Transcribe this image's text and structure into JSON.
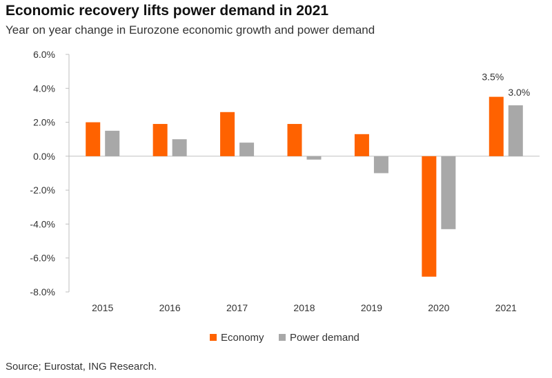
{
  "chart_data": {
    "type": "bar",
    "title": "Economic recovery lifts power demand in 2021",
    "subtitle": "Year on year change in Eurozone economic growth and power demand",
    "categories": [
      "2015",
      "2016",
      "2017",
      "2018",
      "2019",
      "2020",
      "2021"
    ],
    "series": [
      {
        "name": "Economy",
        "color": "#ff6200",
        "values": [
          2.0,
          1.9,
          2.6,
          1.9,
          1.3,
          -7.1,
          3.5
        ]
      },
      {
        "name": "Power demand",
        "color": "#a8a8a8",
        "values": [
          1.5,
          1.0,
          0.8,
          -0.2,
          -1.0,
          -4.3,
          3.0
        ]
      }
    ],
    "ylim": [
      -8.0,
      6.0
    ],
    "yticks": [
      6.0,
      4.0,
      2.0,
      0.0,
      -2.0,
      -4.0,
      -6.0,
      -8.0
    ],
    "ytick_labels": [
      "6.0%",
      "4.0%",
      "2.0%",
      "0.0%",
      "-2.0%",
      "-4.0%",
      "-6.0%",
      "-8.0%"
    ],
    "data_labels": [
      {
        "series": 0,
        "category": 6,
        "text": "3.5%"
      },
      {
        "series": 1,
        "category": 6,
        "text": "3.0%"
      }
    ],
    "legend_position": "bottom",
    "grid": false,
    "source": "Source; Eurostat, ING Research."
  }
}
